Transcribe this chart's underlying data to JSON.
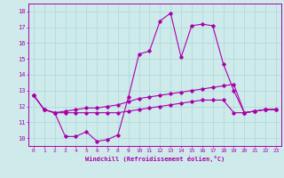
{
  "xlabel": "Windchill (Refroidissement éolien,°C)",
  "background_color": "#ceeaea",
  "line_color": "#aa00aa",
  "grid_color": "#aad8d8",
  "xlim": [
    -0.5,
    23.5
  ],
  "ylim": [
    9.5,
    18.5
  ],
  "xticks": [
    0,
    1,
    2,
    3,
    4,
    5,
    6,
    7,
    8,
    9,
    10,
    11,
    12,
    13,
    14,
    15,
    16,
    17,
    18,
    19,
    20,
    21,
    22,
    23
  ],
  "yticks": [
    10,
    11,
    12,
    13,
    14,
    15,
    16,
    17,
    18
  ],
  "series": [
    {
      "x": [
        0,
        1,
        2,
        3,
        4,
        5,
        6,
        7,
        8,
        9,
        10,
        11,
        12,
        13,
        14,
        15,
        16,
        17,
        18,
        19,
        20,
        21,
        22,
        23
      ],
      "y": [
        12.7,
        11.8,
        11.6,
        10.1,
        10.1,
        10.4,
        9.8,
        9.9,
        10.2,
        12.6,
        15.3,
        15.5,
        17.4,
        17.9,
        15.1,
        17.1,
        17.2,
        17.1,
        14.7,
        13.0,
        11.6,
        11.7,
        11.8,
        11.8
      ]
    },
    {
      "x": [
        0,
        1,
        2,
        3,
        4,
        5,
        6,
        7,
        8,
        9,
        10,
        11,
        12,
        13,
        14,
        15,
        16,
        17,
        18,
        19,
        20,
        21,
        22,
        23
      ],
      "y": [
        12.7,
        11.8,
        11.6,
        11.7,
        11.8,
        11.9,
        11.9,
        12.0,
        12.1,
        12.3,
        12.5,
        12.6,
        12.7,
        12.8,
        12.9,
        13.0,
        13.1,
        13.2,
        13.3,
        13.4,
        11.6,
        11.7,
        11.8,
        11.8
      ]
    },
    {
      "x": [
        0,
        1,
        2,
        3,
        4,
        5,
        6,
        7,
        8,
        9,
        10,
        11,
        12,
        13,
        14,
        15,
        16,
        17,
        18,
        19,
        20,
        21,
        22,
        23
      ],
      "y": [
        12.7,
        11.8,
        11.6,
        11.6,
        11.6,
        11.6,
        11.6,
        11.6,
        11.6,
        11.7,
        11.8,
        11.9,
        12.0,
        12.1,
        12.2,
        12.3,
        12.4,
        12.4,
        12.4,
        11.6,
        11.6,
        11.7,
        11.8,
        11.8
      ]
    }
  ]
}
